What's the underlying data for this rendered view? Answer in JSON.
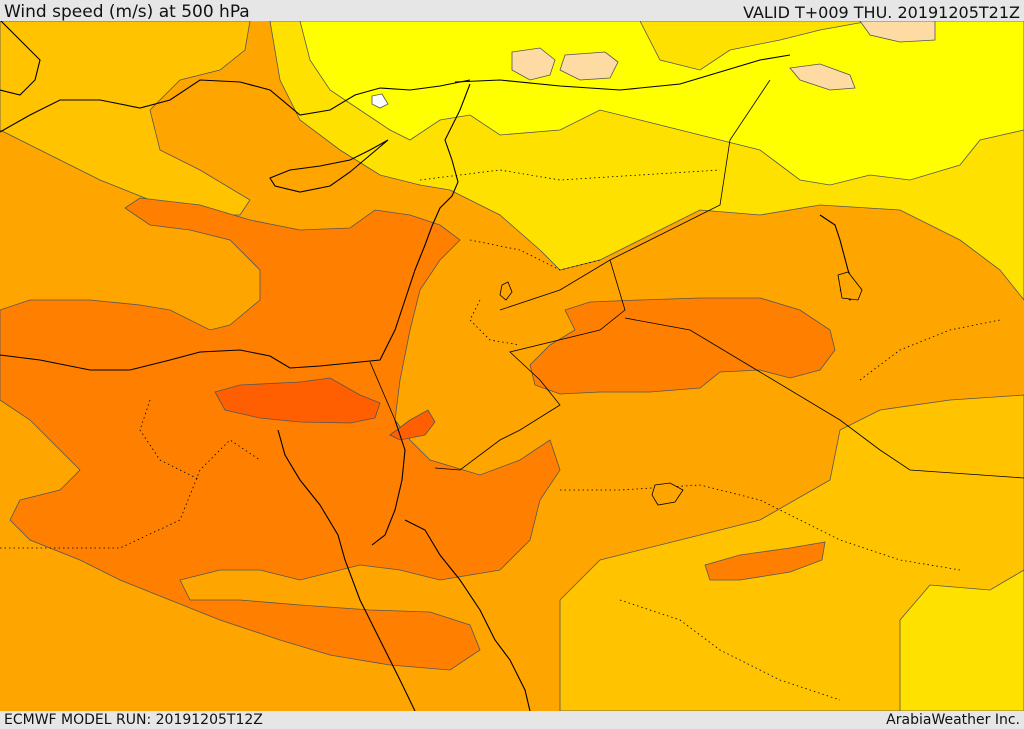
{
  "header": {
    "title": "Wind speed (m/s) at 500 hPa",
    "valid_time": "VALID T+009 THU. 20191205T21Z"
  },
  "footer": {
    "model_run": "ECMWF MODEL RUN: 20191205T12Z",
    "credit": "ArabiaWeather Inc."
  },
  "colors": {
    "band_10_15": "#ffff00",
    "band_15_20": "#ffe100",
    "band_20_25": "#ffc300",
    "band_25_30": "#ffa500",
    "band_30_35": "#ff8000",
    "band_35_40": "#ff5f00",
    "band_lt_10": "#ffdba4",
    "calm": "#ffffff",
    "coastline": "#000000",
    "contour": "#555555"
  }
}
